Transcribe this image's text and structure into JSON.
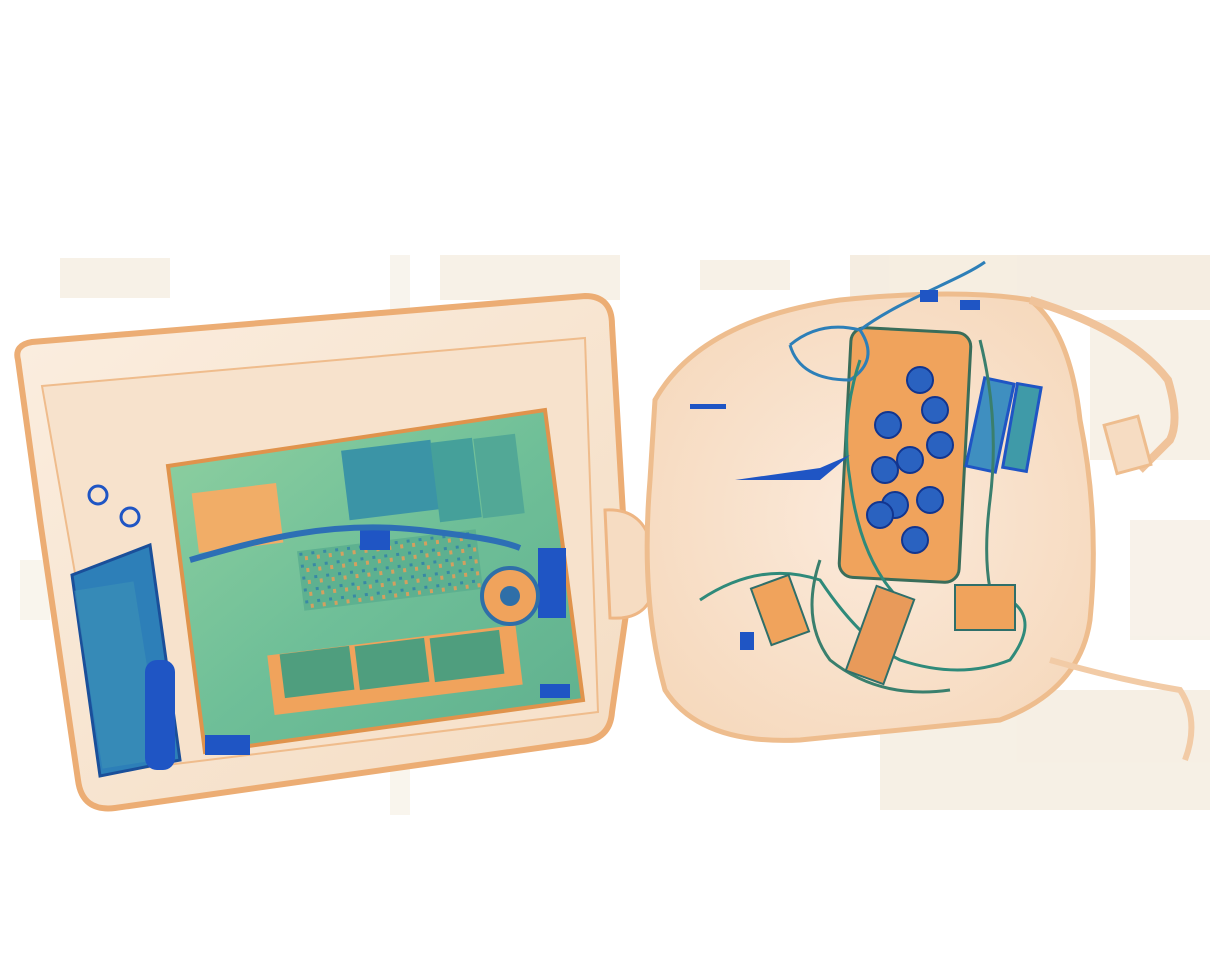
{
  "image": {
    "kind": "x-ray baggage scan",
    "background_color": "#ffffff",
    "palette": {
      "organic_light": "#f7e6d2",
      "organic_edge": "#e9a970",
      "organic_mid": "#f0b98a",
      "orange_dense": "#f0a35c",
      "mixed_green": "#7ec89a",
      "mixed_teal": "#3f9aa8",
      "metal_blue": "#1f55c4",
      "metal_dark": "#0f2e8f",
      "noise": "#efe3cf"
    },
    "objects": [
      {
        "name": "laptop-case",
        "material": "organic"
      },
      {
        "name": "laptop-motherboard",
        "material": "mixed"
      },
      {
        "name": "cooling-fan",
        "material": "metal"
      },
      {
        "name": "phone",
        "material": "metal"
      },
      {
        "name": "soft-bag",
        "material": "organic"
      },
      {
        "name": "battery-pack",
        "material": "metal"
      },
      {
        "name": "cables",
        "material": "mixed"
      },
      {
        "name": "circuit-boards",
        "material": "mixed"
      }
    ]
  }
}
